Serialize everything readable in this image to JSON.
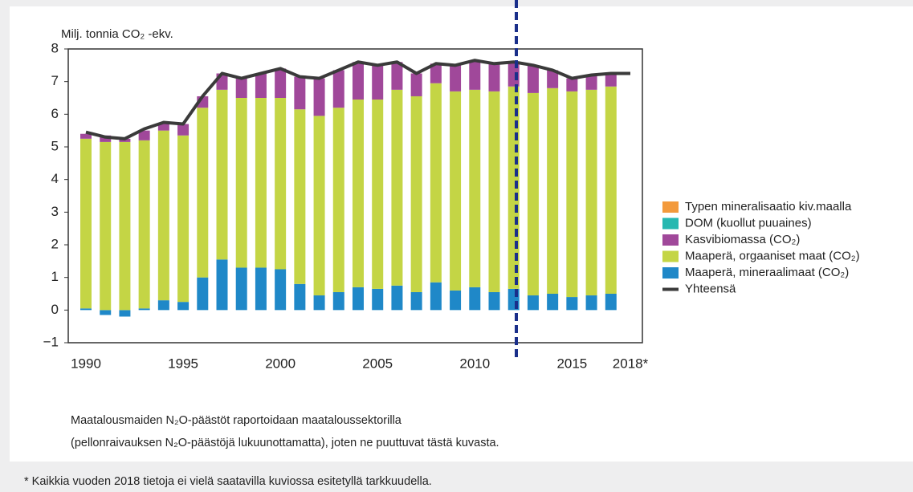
{
  "chart_data": {
    "type": "stacked-bar-line",
    "y_label": "Milj. tonnia CO₂ -ekv.",
    "categories": [
      "1990",
      null,
      null,
      null,
      null,
      "1995",
      null,
      null,
      null,
      null,
      "2000",
      null,
      null,
      null,
      null,
      "2005",
      null,
      null,
      null,
      null,
      "2010",
      null,
      null,
      null,
      null,
      "2015",
      null,
      null,
      "2018*"
    ],
    "ylim": [
      -1,
      8
    ],
    "yticks": [
      {
        "value": -1,
        "label": "−1"
      },
      0,
      1,
      2,
      3,
      4,
      5,
      6,
      7,
      8
    ],
    "series": [
      {
        "name": "Maaperä, mineraalimaat (CO₂)",
        "color": "#1f88c8",
        "values": [
          0.05,
          -0.15,
          -0.2,
          0.05,
          0.3,
          0.25,
          1.0,
          1.55,
          1.3,
          1.3,
          1.25,
          0.8,
          0.45,
          0.55,
          0.7,
          0.65,
          0.75,
          0.55,
          0.85,
          0.6,
          0.7,
          0.55,
          0.65,
          0.45,
          0.5,
          0.4,
          0.45,
          0.5,
          null
        ]
      },
      {
        "name": "Maaperä, orgaaniset maat (CO₂)",
        "color": "#c4d545",
        "values": [
          5.2,
          5.15,
          5.15,
          5.15,
          5.2,
          5.1,
          5.2,
          5.2,
          5.2,
          5.2,
          5.25,
          5.35,
          5.5,
          5.65,
          5.75,
          5.8,
          6.0,
          6.0,
          6.1,
          6.1,
          6.05,
          6.15,
          6.2,
          6.2,
          6.3,
          6.3,
          6.3,
          6.35,
          null
        ]
      },
      {
        "name": "Kasvibiomassa (CO₂)",
        "color": "#a0489a",
        "values": [
          0.15,
          0.2,
          0.1,
          0.3,
          0.2,
          0.35,
          0.35,
          0.5,
          0.6,
          0.75,
          0.9,
          1.0,
          1.15,
          1.15,
          1.15,
          1.05,
          0.85,
          0.7,
          0.6,
          0.8,
          0.9,
          0.85,
          0.75,
          0.85,
          0.55,
          0.4,
          0.45,
          0.4,
          null
        ]
      },
      {
        "name": "DOM (kuollut puuaines)",
        "color": "#27b8b0",
        "values": [
          0,
          0,
          0,
          0,
          0,
          0,
          0,
          0,
          0,
          0,
          0,
          0,
          0,
          0,
          0,
          0,
          0,
          0,
          0,
          0,
          0,
          0,
          0,
          0,
          0,
          0,
          0,
          0,
          null
        ]
      },
      {
        "name": "Typen mineralisaatio kiv.maalla",
        "color": "#f39a3c",
        "values": [
          0,
          0,
          0,
          0,
          0,
          0,
          0,
          0,
          0,
          0,
          0,
          0,
          0,
          0,
          0,
          0,
          0,
          0,
          0,
          0,
          0,
          0,
          0,
          0,
          0,
          0,
          0,
          0,
          null
        ]
      }
    ],
    "line": {
      "name": "Yhteensä",
      "color": "#3a3a3a",
      "values": [
        5.45,
        5.3,
        5.25,
        5.55,
        5.75,
        5.7,
        6.55,
        7.25,
        7.1,
        7.25,
        7.4,
        7.15,
        7.1,
        7.35,
        7.6,
        7.5,
        7.6,
        7.25,
        7.55,
        7.5,
        7.65,
        7.55,
        7.6,
        7.5,
        7.35,
        7.1,
        7.2,
        7.25,
        7.25
      ]
    },
    "notes": [
      "Maatalousmaiden N₂O-päästöt raportoidaan maataloussektorilla",
      "(pellonraivauksen N₂O-päästöjä lukuunottamatta), joten ne puuttuvat tästä kuvasta."
    ],
    "footnote": "* Kaikkia vuoden 2018 tietoja ei vielä saatavilla kuviossa esitetyllä tarkkuudella."
  }
}
